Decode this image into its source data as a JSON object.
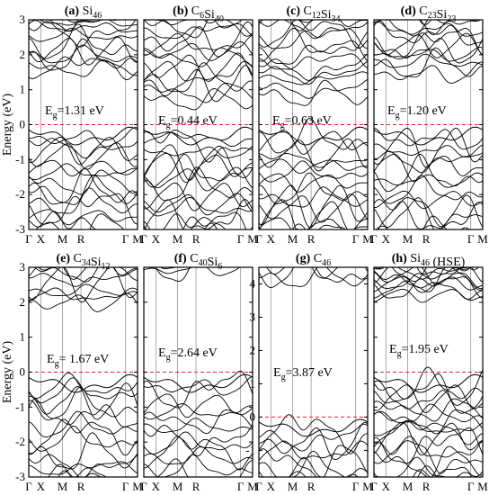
{
  "chart_data": [
    {
      "type": "line",
      "title": "(a) Si46",
      "title_parts": [
        {
          "t": "(a) ",
          "bold": true
        },
        {
          "t": "Si"
        },
        {
          "t": "46",
          "sub": true
        }
      ],
      "ylabel": "Energy (eV)",
      "ylim": [
        -3,
        3
      ],
      "yticks": [
        -3,
        -2,
        -1,
        0,
        1,
        2,
        3
      ],
      "kpath": [
        "Γ",
        "X",
        "M",
        "R",
        "Γ",
        "M"
      ],
      "kpos": [
        0,
        0.11,
        0.31,
        0.48,
        0.89,
        1.0
      ],
      "gap_label": "E",
      "gap_sub": "g",
      "gap_value": "=1.31 eV",
      "fermi_level": 0,
      "vbm": 0,
      "cbm": 1.31,
      "band_style": {
        "n_valence": 15,
        "n_conduction": 12
      }
    },
    {
      "type": "line",
      "title": "(b) C6Si40",
      "title_parts": [
        {
          "t": "(b) ",
          "bold": true
        },
        {
          "t": "C"
        },
        {
          "t": "6",
          "sub": true
        },
        {
          "t": "Si"
        },
        {
          "t": "40",
          "sub": true
        }
      ],
      "ylim": [
        -3,
        3
      ],
      "yticks": [
        -3,
        -2,
        -1,
        0,
        1,
        2,
        3
      ],
      "kpath": [
        "Γ",
        "X",
        "M",
        "R",
        "Γ",
        "M"
      ],
      "kpos": [
        0,
        0.11,
        0.31,
        0.48,
        0.89,
        1.0
      ],
      "gap_label": "E",
      "gap_sub": "g",
      "gap_value": "=0.44 eV",
      "fermi_level": 0,
      "vbm": 0,
      "cbm": 0.44,
      "band_style": {
        "n_valence": 15,
        "n_conduction": 14
      }
    },
    {
      "type": "line",
      "title": "(c) C12Si34",
      "title_parts": [
        {
          "t": "(c) ",
          "bold": true
        },
        {
          "t": "C"
        },
        {
          "t": "12",
          "sub": true
        },
        {
          "t": "Si"
        },
        {
          "t": "34",
          "sub": true
        }
      ],
      "ylim": [
        -3,
        3
      ],
      "yticks": [
        -3,
        -2,
        -1,
        0,
        1,
        2,
        3
      ],
      "kpath": [
        "Γ",
        "X",
        "M",
        "R",
        "Γ",
        "M"
      ],
      "kpos": [
        0,
        0.11,
        0.31,
        0.48,
        0.89,
        1.0
      ],
      "gap_label": "E",
      "gap_sub": "g",
      "gap_value": "=0.63 eV",
      "fermi_level": 0,
      "vbm": 0,
      "cbm": 0.63,
      "band_style": {
        "n_valence": 15,
        "n_conduction": 13
      }
    },
    {
      "type": "line",
      "title": "(d) C23Si23",
      "title_parts": [
        {
          "t": "(d) ",
          "bold": true
        },
        {
          "t": "C"
        },
        {
          "t": "23",
          "sub": true
        },
        {
          "t": "Si"
        },
        {
          "t": "23",
          "sub": true
        }
      ],
      "ylim": [
        -3,
        3
      ],
      "yticks": [
        -3,
        -2,
        -1,
        0,
        1,
        2,
        3
      ],
      "kpath": [
        "Γ",
        "X",
        "M",
        "R",
        "Γ",
        "M"
      ],
      "kpos": [
        0,
        0.11,
        0.31,
        0.48,
        0.89,
        1.0
      ],
      "gap_label": "E",
      "gap_sub": "g",
      "gap_value": "=1.20 eV",
      "fermi_level": 0,
      "vbm": 0,
      "cbm": 1.2,
      "band_style": {
        "n_valence": 14,
        "n_conduction": 12
      }
    },
    {
      "type": "line",
      "title": "(e) C34Si12",
      "title_parts": [
        {
          "t": "(e) ",
          "bold": true
        },
        {
          "t": "C"
        },
        {
          "t": "34",
          "sub": true
        },
        {
          "t": "Si"
        },
        {
          "t": "12",
          "sub": true
        }
      ],
      "ylabel": "Energy (eV)",
      "ylim": [
        -3,
        3
      ],
      "yticks": [
        -3,
        -2,
        -1,
        0,
        1,
        2,
        3
      ],
      "kpath": [
        "Γ",
        "X",
        "M",
        "R",
        "Γ",
        "M"
      ],
      "kpos": [
        0,
        0.11,
        0.31,
        0.48,
        0.89,
        1.0
      ],
      "gap_label": "E",
      "gap_sub": "g",
      "gap_value": "= 1.67 eV",
      "fermi_level": 0,
      "vbm": 0,
      "cbm": 1.67,
      "band_style": {
        "n_valence": 13,
        "n_conduction": 8
      }
    },
    {
      "type": "line",
      "title": "(f) C40Si6",
      "title_parts": [
        {
          "t": "(f) ",
          "bold": true
        },
        {
          "t": "C"
        },
        {
          "t": "40",
          "sub": true
        },
        {
          "t": "Si"
        },
        {
          "t": "6",
          "sub": true
        }
      ],
      "ylim": [
        -3,
        3
      ],
      "yticks": [
        -3,
        -2,
        -1,
        0,
        1,
        2,
        3
      ],
      "kpath": [
        "Γ",
        "X",
        "M",
        "R",
        "Γ",
        "M"
      ],
      "kpos": [
        0,
        0.11,
        0.31,
        0.48,
        0.89,
        1.0
      ],
      "gap_label": "E",
      "gap_sub": "g",
      "gap_value": "=2.64 eV",
      "fermi_level": 0,
      "vbm": 0,
      "cbm": 2.64,
      "band_style": {
        "n_valence": 13,
        "n_conduction": 3
      }
    },
    {
      "type": "line",
      "title": "(g) C46",
      "title_parts": [
        {
          "t": "(g) ",
          "bold": true
        },
        {
          "t": "C"
        },
        {
          "t": "46",
          "sub": true
        }
      ],
      "ylim": [
        -1.8,
        4.5
      ],
      "yticks": [
        -1,
        0,
        1,
        2,
        3,
        4
      ],
      "kpath": [
        "Γ",
        "X",
        "M",
        "R",
        "Γ",
        "M"
      ],
      "kpos": [
        0,
        0.11,
        0.31,
        0.48,
        0.89,
        1.0
      ],
      "gap_label": "E",
      "gap_sub": "g",
      "gap_value": "=3.87 eV",
      "fermi_level": 0,
      "vbm": 0,
      "cbm": 3.87,
      "band_style": {
        "n_valence": 8,
        "n_conduction": 3
      }
    },
    {
      "type": "line",
      "title": "(h) Si46 (HSE)",
      "title_parts": [
        {
          "t": "(h) ",
          "bold": true
        },
        {
          "t": "Si"
        },
        {
          "t": "46",
          "sub": true
        },
        {
          "t": " (HSE)"
        }
      ],
      "ylim": [
        -3,
        3
      ],
      "yticks": [
        -3,
        -2,
        -1,
        0,
        1,
        2,
        3
      ],
      "kpath": [
        "Γ",
        "X",
        "M",
        "R",
        "Γ",
        "M"
      ],
      "kpos": [
        0,
        0.11,
        0.31,
        0.48,
        0.89,
        1.0
      ],
      "gap_label": "E",
      "gap_sub": "g",
      "gap_value": "=1.95 eV",
      "fermi_level": 0,
      "vbm": 0,
      "cbm": 1.95,
      "band_style": {
        "n_valence": 18,
        "n_conduction": 12
      }
    }
  ],
  "colors": {
    "band": "#000000",
    "fermi": "#e8202a",
    "axis": "#000000",
    "kline": "#888888"
  }
}
